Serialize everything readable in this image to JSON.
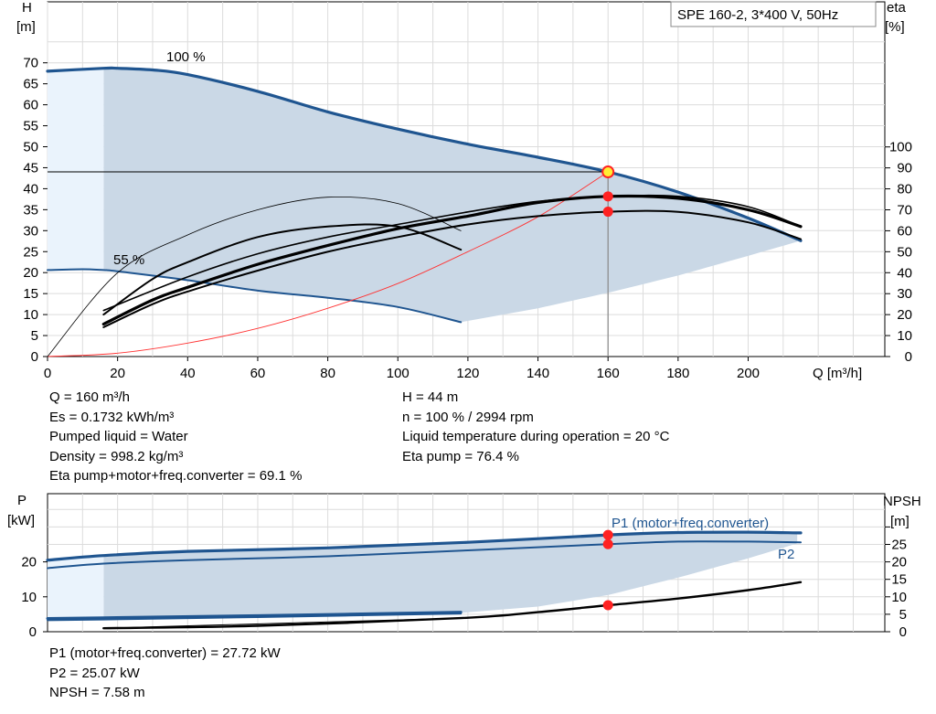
{
  "colors": {
    "head_curve": "#1f5590",
    "envelope_fill": "#cad8e6",
    "light_fill": "#eaf3fc",
    "system_curve": "#ff3333",
    "grid": "#dcdcdc",
    "point": "#ff2222",
    "point_yellow": "#ffee33"
  },
  "top_chart": {
    "title_box": "SPE 160-2, 3*400 V, 50Hz",
    "y_left_label": "H",
    "y_left_unit": "[m]",
    "y_right_label": "eta",
    "y_right_unit": "[%]",
    "x_label": "Q [m³/h]",
    "x_ticks": [
      "0",
      "20",
      "40",
      "60",
      "80",
      "100",
      "120",
      "140",
      "160",
      "180",
      "200"
    ],
    "y_left_ticks": [
      "0",
      "5",
      "10",
      "15",
      "20",
      "25",
      "30",
      "35",
      "40",
      "45",
      "50",
      "55",
      "60",
      "65",
      "70"
    ],
    "y_right_ticks": [
      "0",
      "10",
      "20",
      "30",
      "40",
      "50",
      "60",
      "70",
      "80",
      "90",
      "100"
    ],
    "label_100": "100 %",
    "label_55": "55 %"
  },
  "top_info": {
    "left": [
      "Q = 160 m³/h",
      "Es = 0.1732 kWh/m³",
      "Pumped liquid = Water",
      "Density = 998.2 kg/m³",
      "Eta pump+motor+freq.converter = 69.1 %"
    ],
    "right": [
      "H = 44 m",
      "n = 100 % / 2994 rpm",
      "Liquid temperature during operation = 20 °C",
      "Eta pump = 76.4 %"
    ]
  },
  "bottom_chart": {
    "y_left_label": "P",
    "y_left_unit": "[kW]",
    "y_right_label": "NPSH",
    "y_right_unit": "[m]",
    "y_left_ticks": [
      "0",
      "10",
      "20"
    ],
    "y_right_ticks": [
      "0",
      "5",
      "10",
      "15",
      "20",
      "25"
    ],
    "p1_label": "P1 (motor+freq.converter)",
    "p2_label": "P2"
  },
  "bottom_info": [
    "P1 (motor+freq.converter) = 27.72 kW",
    "P2 = 25.07 kW",
    "NPSH = 7.58 m"
  ],
  "chart_data": [
    {
      "type": "line",
      "x_label": "Q [m³/h]",
      "y_label": "H [m]",
      "y2_label": "eta [%]",
      "xlim": [
        0,
        235
      ],
      "ylim": [
        0,
        75
      ],
      "y2lim": [
        0,
        130
      ],
      "duty_point": {
        "Q": 160,
        "H": 44,
        "eta_pump": 76.4,
        "eta_total": 69.1
      },
      "series": [
        {
          "name": "100 %",
          "axis": "H",
          "x": [
            0,
            16,
            20,
            30,
            40,
            60,
            80,
            100,
            120,
            140,
            160,
            180,
            200,
            215
          ],
          "y": [
            68,
            68.7,
            68.7,
            68.3,
            67.2,
            63.2,
            58.3,
            54.2,
            50.6,
            47.5,
            44,
            39.2,
            33,
            27.6
          ]
        },
        {
          "name": "55 %",
          "axis": "H",
          "x": [
            0,
            10,
            16,
            20,
            40,
            60,
            80,
            100,
            118
          ],
          "y": [
            20.6,
            20.8,
            20.6,
            20.3,
            18.2,
            15.7,
            14,
            11.8,
            8.2
          ]
        },
        {
          "axis": "H",
          "x": [
            0,
            20,
            40,
            60,
            80,
            100,
            120,
            140,
            160
          ],
          "y": [
            0,
            0.8,
            3.2,
            6.7,
            11.5,
            17.4,
            25,
            33.3,
            44
          ]
        },
        {
          "axis": "eta",
          "x": [
            16,
            30,
            40,
            60,
            80,
            100,
            120,
            140,
            160,
            180,
            200,
            215
          ],
          "y": [
            14,
            25,
            31,
            41,
            50,
            57,
            63,
            67,
            69.1,
            69,
            64,
            56
          ]
        },
        {
          "axis": "eta",
          "x": [
            16,
            30,
            40,
            60,
            80,
            100,
            120,
            140,
            160,
            180,
            200,
            215
          ],
          "y": [
            15.5,
            27,
            33,
            44,
            53,
            61,
            67,
            73.5,
            76.4,
            75.5,
            70,
            62
          ]
        },
        {
          "axis": "eta",
          "x": [
            16,
            30,
            40,
            60,
            80,
            100,
            118
          ],
          "y": [
            20,
            37,
            45,
            57,
            62,
            62,
            51
          ]
        },
        {
          "axis": "eta",
          "x": [
            0,
            20,
            40,
            60,
            80,
            100,
            118
          ],
          "y": [
            0,
            40,
            58,
            70,
            76,
            73,
            60
          ]
        },
        {
          "axis": "eta",
          "x": [
            16,
            40,
            60,
            80,
            100,
            120,
            140,
            160,
            180,
            200,
            215
          ],
          "y": [
            22,
            38,
            49,
            57,
            63,
            69,
            74,
            76.4,
            76.4,
            71.5,
            62
          ]
        }
      ]
    },
    {
      "type": "line",
      "x_label": "Q [m³/h]",
      "y_label": "P [kW]",
      "y2_label": "NPSH [m]",
      "xlim": [
        0,
        235
      ],
      "ylim": [
        0,
        30
      ],
      "y2lim": [
        0,
        30
      ],
      "duty_point": {
        "Q": 160,
        "P1": 27.72,
        "P2": 25.07,
        "NPSH": 7.58
      },
      "series": [
        {
          "name": "P1 (motor+freq.converter)",
          "axis": "P",
          "x": [
            0,
            16,
            40,
            80,
            120,
            160,
            180,
            200,
            215
          ],
          "y": [
            20.5,
            21.8,
            23,
            24,
            25.6,
            27.72,
            28.4,
            28.5,
            28.3
          ]
        },
        {
          "name": "P2",
          "axis": "P",
          "x": [
            0,
            16,
            40,
            80,
            120,
            160,
            180,
            200,
            215
          ],
          "y": [
            18.2,
            19.5,
            20.5,
            21.6,
            23.3,
            25.07,
            25.8,
            25.8,
            25.6
          ]
        },
        {
          "axis": "P",
          "x": [
            0,
            16,
            60,
            118
          ],
          "y": [
            3.3,
            3.5,
            4.2,
            5.2
          ]
        },
        {
          "axis": "P",
          "x": [
            0,
            16,
            60,
            118
          ],
          "y": [
            3.8,
            4,
            4.6,
            5.6
          ]
        },
        {
          "axis": "NPSH",
          "x": [
            16,
            60,
            118,
            140,
            160,
            180,
            200,
            215
          ],
          "y": [
            1,
            1.7,
            3.9,
            5.6,
            7.58,
            9.5,
            11.9,
            14.2
          ]
        }
      ]
    }
  ]
}
